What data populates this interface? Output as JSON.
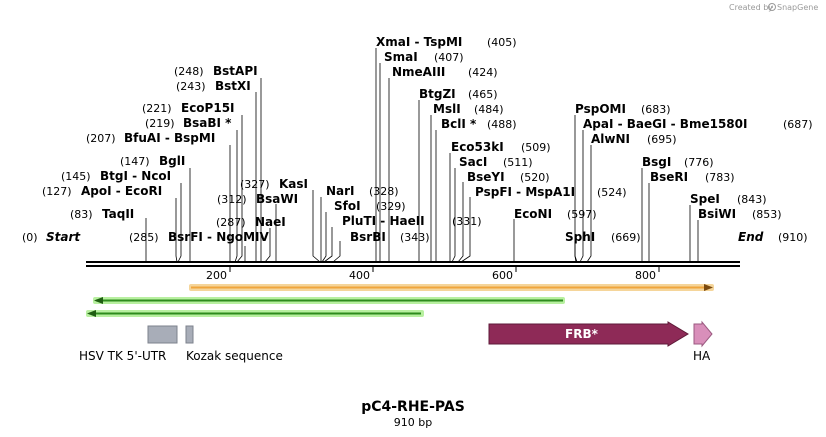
{
  "credit": {
    "prefix": "Created by",
    "brand": "SnapGene"
  },
  "map": {
    "name": "pC4-RHE-PAS",
    "length_label": "910 bp",
    "start_label": "Start",
    "end_label": "End",
    "start_pos": "(0)",
    "end_pos": "(910)",
    "ticks": [
      "200",
      "400",
      "600",
      "800"
    ]
  },
  "sites": [
    {
      "name": "TaqII",
      "pos": "(83)"
    },
    {
      "name": "ApoI - EcoRI",
      "pos": "(127)"
    },
    {
      "name": "BtgI - NcoI",
      "pos": "(145)"
    },
    {
      "name": "BglI",
      "pos": "(147)"
    },
    {
      "name": "BfuAI - BspMI",
      "pos": "(207)"
    },
    {
      "name": "BsaBI *",
      "pos": "(219)"
    },
    {
      "name": "EcoP15I",
      "pos": "(221)"
    },
    {
      "name": "BstXI",
      "pos": "(243)"
    },
    {
      "name": "BstAPI",
      "pos": "(248)"
    },
    {
      "name": "BsrFI - NgoMIV",
      "pos": "(285)"
    },
    {
      "name": "NaeI",
      "pos": "(287)"
    },
    {
      "name": "BsaWI",
      "pos": "(312)"
    },
    {
      "name": "KasI",
      "pos": "(327)"
    },
    {
      "name": "NarI",
      "pos": "(328)"
    },
    {
      "name": "SfoI",
      "pos": "(329)"
    },
    {
      "name": "PluTI - HaeII",
      "pos": "(331)"
    },
    {
      "name": "BsrBI",
      "pos": "(343)"
    },
    {
      "name": "XmaI - TspMI",
      "pos": "(405)"
    },
    {
      "name": "SmaI",
      "pos": "(407)"
    },
    {
      "name": "NmeAIII",
      "pos": "(424)"
    },
    {
      "name": "BtgZI",
      "pos": "(465)"
    },
    {
      "name": "MslI",
      "pos": "(484)"
    },
    {
      "name": "BclI *",
      "pos": "(488)"
    },
    {
      "name": "Eco53kI",
      "pos": "(509)"
    },
    {
      "name": "SacI",
      "pos": "(511)"
    },
    {
      "name": "BseYI",
      "pos": "(520)"
    },
    {
      "name": "PspFI - MspA1I",
      "pos": "(524)"
    },
    {
      "name": "EcoNI",
      "pos": "(597)"
    },
    {
      "name": "SphI",
      "pos": "(669)"
    },
    {
      "name": "PspOMI",
      "pos": "(683)"
    },
    {
      "name": "ApaI - BaeGI - Bme1580I",
      "pos": "(687)"
    },
    {
      "name": "AlwNI",
      "pos": "(695)"
    },
    {
      "name": "BsgI",
      "pos": "(776)"
    },
    {
      "name": "BseRI",
      "pos": "(783)"
    },
    {
      "name": "SpeI",
      "pos": "(843)"
    },
    {
      "name": "BsiWI",
      "pos": "(853)"
    }
  ],
  "features": [
    {
      "label": "HSV TK 5'-UTR"
    },
    {
      "label": "Kozak sequence"
    },
    {
      "label": "FRB*"
    },
    {
      "label": "HA"
    }
  ],
  "colors": {
    "orf_fill": "#f0a53c",
    "orf_border": "#f5d59a",
    "green_line": "#2e8b1e",
    "green_glow": "#b8f0a0",
    "utr": "#a8adb8",
    "frb": "#8e2a57",
    "ha": "#d98fba"
  }
}
